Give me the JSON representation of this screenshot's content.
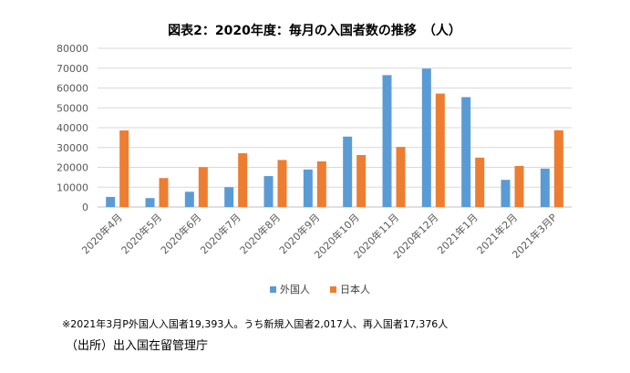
{
  "chart_data": {
    "type": "bar",
    "title": "図表2：2020年度：毎月の入国者数の推移　（人）",
    "categories": [
      "2020年4月",
      "2020年5月",
      "2020年6月",
      "2020年7月",
      "2020年8月",
      "2020年9月",
      "2020年10月",
      "2020年11月",
      "2020年12月",
      "2021年1月",
      "2021年2月",
      "2021年3月P"
    ],
    "series": [
      {
        "name": "外国人",
        "color": "#5B9BD5",
        "values": [
          5100,
          4500,
          7700,
          10000,
          15600,
          18900,
          35500,
          66500,
          69800,
          55400,
          13700,
          19393
        ]
      },
      {
        "name": "日本人",
        "color": "#ED7D31",
        "values": [
          38600,
          14600,
          20100,
          27100,
          23700,
          23000,
          26200,
          30300,
          57200,
          24900,
          20700,
          38700
        ]
      }
    ],
    "ylim": [
      0,
      80000
    ],
    "yticks": [
      "0",
      "10000",
      "20000",
      "30000",
      "40000",
      "50000",
      "60000",
      "70000",
      "80000"
    ],
    "grid": true,
    "legend": "bottom-center",
    "xlabel": "",
    "ylabel": ""
  },
  "footnote": "※2021年3月P外国人入国者19,393人。うち新規入国者2,017人、再入国者17,376人",
  "source": "（出所）出入国在留管理庁"
}
